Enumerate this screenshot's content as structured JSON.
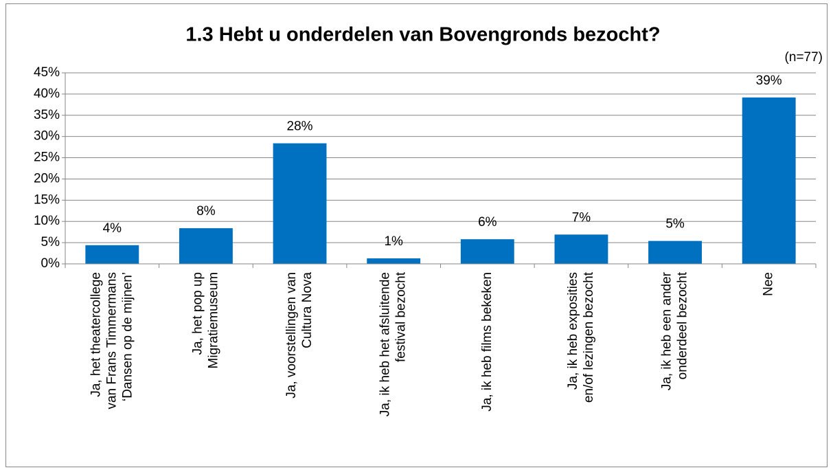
{
  "chart_data": {
    "type": "bar",
    "title": "1.3 Hebt u onderdelen van Bovengronds bezocht?",
    "annotation": "(n=77)",
    "categories": [
      "Ja, het theatercollege\nvan Frans Timmermans\n‘Dansen op de mijnen’",
      "Ja, het pop up\nMigratiemuseum",
      "Ja, voorstellingen van\nCultura Nova",
      "Ja, ik heb het afsluitende\nfestival bezocht",
      "Ja, ik heb films bekeken",
      "Ja, ik heb exposities\nen/of lezingen bezocht",
      "Ja, ik heb een ander\nonderdeel bezocht",
      "Nee"
    ],
    "values": [
      4.4,
      8.4,
      28.4,
      1.3,
      5.8,
      6.9,
      5.4,
      39.2
    ],
    "value_labels": [
      "4%",
      "8%",
      "28%",
      "1%",
      "6%",
      "7%",
      "5%",
      "39%"
    ],
    "color": "#0070c0",
    "ylim": [
      0,
      45
    ],
    "yticks": [
      {
        "value": 0,
        "label": "0%"
      },
      {
        "value": 5,
        "label": "5%"
      },
      {
        "value": 10,
        "label": "10%"
      },
      {
        "value": 15,
        "label": "15%"
      },
      {
        "value": 20,
        "label": "20%"
      },
      {
        "value": 25,
        "label": "25%"
      },
      {
        "value": 30,
        "label": "30%"
      },
      {
        "value": 35,
        "label": "35%"
      },
      {
        "value": 40,
        "label": "40%"
      },
      {
        "value": 45,
        "label": "45%"
      }
    ],
    "grid": true
  }
}
